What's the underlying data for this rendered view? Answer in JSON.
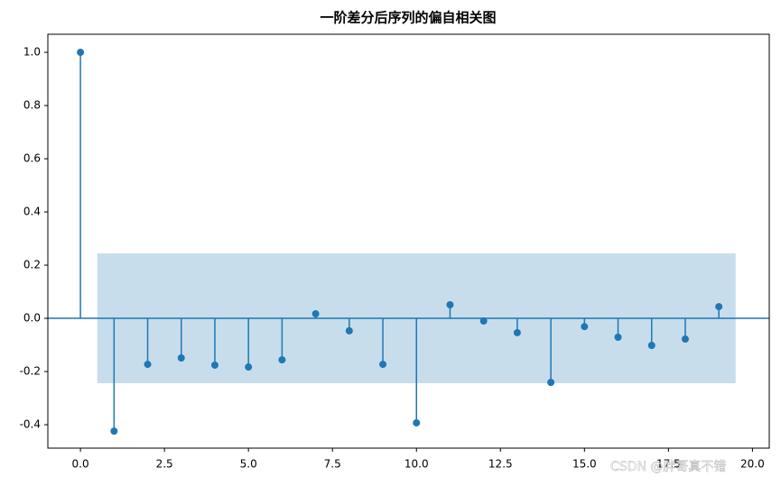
{
  "chart_data": {
    "type": "stem",
    "title": "一阶差分后序列的偏自相关图",
    "x": [
      0,
      1,
      2,
      3,
      4,
      5,
      6,
      7,
      8,
      9,
      10,
      11,
      12,
      13,
      14,
      15,
      16,
      17,
      18,
      19
    ],
    "values": [
      1.0,
      -0.424,
      -0.173,
      -0.149,
      -0.176,
      -0.183,
      -0.156,
      0.017,
      -0.047,
      -0.173,
      -0.393,
      0.051,
      -0.01,
      -0.054,
      -0.241,
      -0.031,
      -0.071,
      -0.102,
      -0.078,
      0.044
    ],
    "color": "#1f77b4",
    "confidence_band": {
      "lower": -0.244,
      "upper": 0.244
    },
    "xlim": [
      -0.97,
      20.5
    ],
    "ylim": [
      -0.488,
      1.068
    ],
    "xticks": [
      {
        "value": 0,
        "label": "0.0"
      },
      {
        "value": 2.5,
        "label": "2.5"
      },
      {
        "value": 5,
        "label": "5.0"
      },
      {
        "value": 7.5,
        "label": "7.5"
      },
      {
        "value": 10,
        "label": "10.0"
      },
      {
        "value": 12.5,
        "label": "12.5"
      },
      {
        "value": 15,
        "label": "15.0"
      },
      {
        "value": 17.5,
        "label": "17.5"
      },
      {
        "value": 20,
        "label": "20.0"
      }
    ],
    "yticks": [
      {
        "value": -0.4,
        "label": "-0.4"
      },
      {
        "value": -0.2,
        "label": "-0.2"
      },
      {
        "value": 0,
        "label": "0.0"
      },
      {
        "value": 0.2,
        "label": "0.2"
      },
      {
        "value": 0.4,
        "label": "0.4"
      },
      {
        "value": 0.6,
        "label": "0.6"
      },
      {
        "value": 0.8,
        "label": "0.8"
      },
      {
        "value": 1.0,
        "label": "1.0"
      }
    ],
    "grid": false,
    "watermark": "CSDN @胖哥真不错"
  }
}
